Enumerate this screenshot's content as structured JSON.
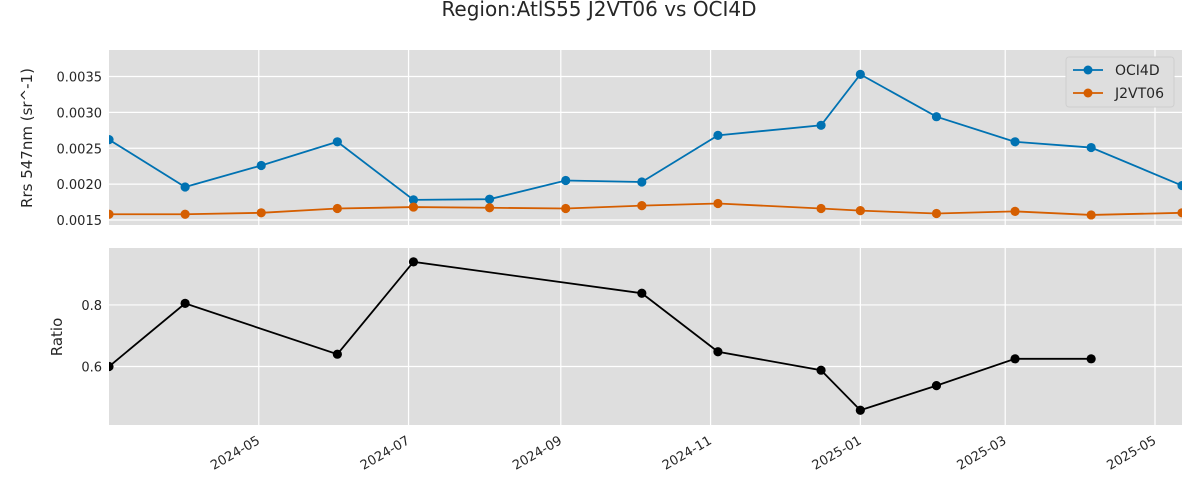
{
  "chart_data": {
    "type": "line",
    "title": "Region:AtlS55 J2VT06 vs OCI4D",
    "xlim": [
      "2024-03-01",
      "2025-05-12"
    ],
    "x_ticks": [
      "2024-05",
      "2024-07",
      "2024-09",
      "2024-11",
      "2025-01",
      "2025-03",
      "2025-05"
    ],
    "grid": true,
    "panels": [
      {
        "ylabel": "Rrs 547nm (sr^-1)",
        "ylim": [
          0.00143,
          0.00387
        ],
        "y_ticks": [
          "0.0015",
          "0.0020",
          "0.0025",
          "0.0030",
          "0.0035"
        ],
        "legend_position": "top-right",
        "series": [
          {
            "name": "OCI4D",
            "color": "#0072b2",
            "x": [
              "2024-03-01",
              "2024-04-01",
              "2024-05-02",
              "2024-06-02",
              "2024-07-03",
              "2024-08-03",
              "2024-09-03",
              "2024-10-04",
              "2024-11-04",
              "2024-12-16",
              "2025-01-01",
              "2025-02-01",
              "2025-03-05",
              "2025-04-05",
              "2025-05-12"
            ],
            "y": [
              0.00262,
              0.00196,
              0.00226,
              0.00259,
              0.00178,
              0.00179,
              0.00205,
              0.00203,
              0.00268,
              0.00282,
              0.00353,
              0.00294,
              0.00259,
              0.00251,
              0.00198
            ]
          },
          {
            "name": "J2VT06",
            "color": "#d55e00",
            "x": [
              "2024-03-01",
              "2024-04-01",
              "2024-05-02",
              "2024-06-02",
              "2024-07-03",
              "2024-08-03",
              "2024-09-03",
              "2024-10-04",
              "2024-11-04",
              "2024-12-16",
              "2025-01-01",
              "2025-02-01",
              "2025-03-05",
              "2025-04-05",
              "2025-05-12"
            ],
            "y": [
              0.00158,
              0.00158,
              0.0016,
              0.00166,
              0.00168,
              0.00167,
              0.00166,
              0.0017,
              0.00173,
              0.00166,
              0.00163,
              0.00159,
              0.00162,
              0.00157,
              0.0016
            ]
          }
        ]
      },
      {
        "ylabel": "Ratio",
        "ylim": [
          0.41,
          0.985
        ],
        "y_ticks": [
          "0.6",
          "0.8"
        ],
        "series": [
          {
            "color": "#000000",
            "x": [
              "2024-03-01",
              "2024-04-01",
              "2024-06-02",
              "2024-07-03",
              "2024-10-04",
              "2024-11-04",
              "2024-12-16",
              "2025-01-01",
              "2025-02-01",
              "2025-03-05",
              "2025-04-05"
            ],
            "y": [
              0.6,
              0.805,
              0.64,
              0.94,
              0.838,
              0.648,
              0.588,
              0.458,
              0.538,
              0.625,
              0.625
            ]
          }
        ]
      }
    ]
  }
}
